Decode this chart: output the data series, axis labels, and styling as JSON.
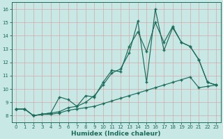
{
  "xlabel": "Humidex (Indice chaleur)",
  "xlim_min": -0.5,
  "xlim_max": 23.5,
  "ylim_min": 7.5,
  "ylim_max": 16.5,
  "xticks": [
    0,
    1,
    2,
    3,
    4,
    5,
    6,
    7,
    8,
    9,
    10,
    11,
    12,
    13,
    14,
    15,
    16,
    17,
    18,
    19,
    20,
    21,
    22,
    23
  ],
  "yticks": [
    8,
    9,
    10,
    11,
    12,
    13,
    14,
    15,
    16
  ],
  "bg_color": "#c8e8e5",
  "line_color": "#1a6b5a",
  "grid_color": "#b8d8d4",
  "s1_x": [
    0,
    1,
    2,
    3,
    4,
    5,
    6,
    7,
    8,
    9,
    10,
    11,
    12,
    13,
    14,
    15,
    16,
    17,
    18,
    19,
    20,
    21,
    22,
    23
  ],
  "s1_y": [
    8.5,
    8.5,
    8.0,
    8.1,
    8.2,
    8.3,
    8.6,
    8.7,
    9.0,
    9.5,
    10.3,
    11.2,
    11.5,
    12.7,
    15.1,
    10.5,
    16.0,
    12.9,
    14.6,
    13.5,
    13.2,
    12.2,
    10.5,
    10.3
  ],
  "s2_x": [
    0,
    1,
    2,
    3,
    4,
    5,
    6,
    7,
    8,
    9,
    10,
    11,
    12,
    13,
    14,
    15,
    16,
    17,
    18,
    19,
    20,
    21,
    22,
    23
  ],
  "s2_y": [
    8.5,
    8.5,
    8.0,
    8.1,
    8.2,
    9.4,
    9.2,
    8.7,
    9.5,
    9.4,
    10.5,
    11.4,
    11.3,
    13.2,
    14.3,
    12.8,
    15.0,
    13.5,
    14.7,
    13.5,
    13.2,
    12.2,
    10.5,
    10.3
  ],
  "s3_x": [
    0,
    1,
    2,
    3,
    4,
    5,
    6,
    7,
    8,
    9,
    10,
    11,
    12,
    13,
    14,
    15,
    16,
    17,
    18,
    19,
    20,
    21,
    22,
    23
  ],
  "s3_y": [
    8.5,
    8.5,
    8.0,
    8.1,
    8.1,
    8.2,
    8.4,
    8.5,
    8.6,
    8.7,
    8.9,
    9.1,
    9.3,
    9.5,
    9.7,
    9.9,
    10.1,
    10.3,
    10.5,
    10.7,
    10.9,
    10.1,
    10.2,
    10.3
  ]
}
